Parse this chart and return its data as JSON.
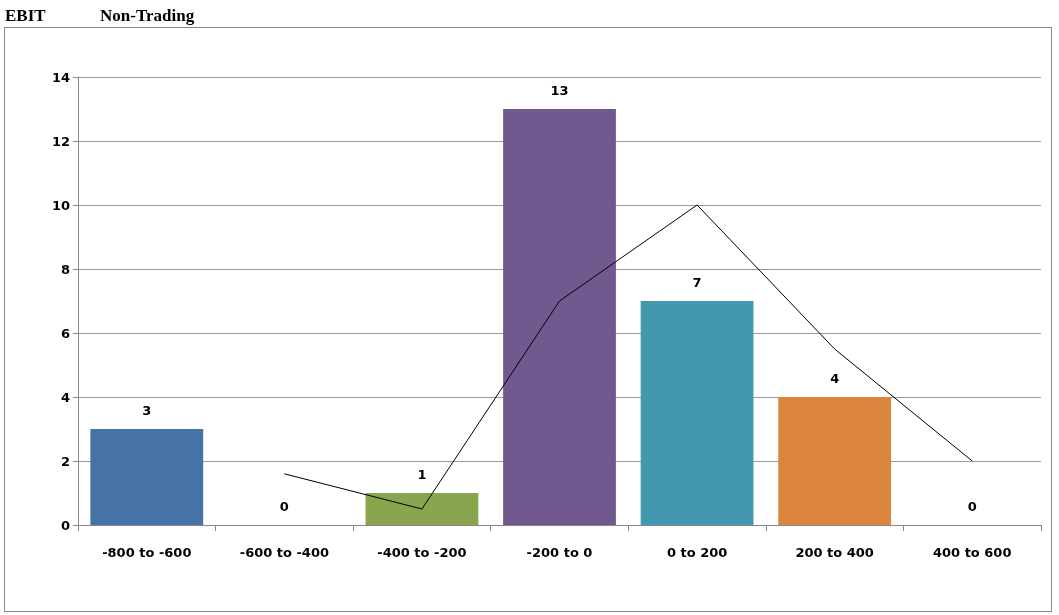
{
  "chart_data": {
    "type": "bar",
    "title": "EBIT",
    "subtitle": "Non-Trading",
    "categories": [
      "-800 to -600",
      "-600 to -400",
      "-400 to -200",
      "-200 to 0",
      "0 to 200",
      "200 to 400",
      "400 to 600"
    ],
    "series": [
      {
        "values": [
          3,
          0,
          1,
          13,
          7,
          4,
          0
        ],
        "colors": [
          "#4572a7",
          "#aa4643",
          "#89a54e",
          "#71588f",
          "#4198af",
          "#db843d",
          "#93a9cf"
        ],
        "data_labels": true
      },
      {
        "type": "line",
        "color": "#000000",
        "values": [
          null,
          1.6,
          0.5,
          7,
          10,
          5.5,
          2
        ],
        "marker": "none"
      }
    ],
    "ylim": [
      0,
      14
    ],
    "yticks": [
      0,
      2,
      4,
      6,
      8,
      10,
      12,
      14
    ],
    "grid": "y"
  }
}
